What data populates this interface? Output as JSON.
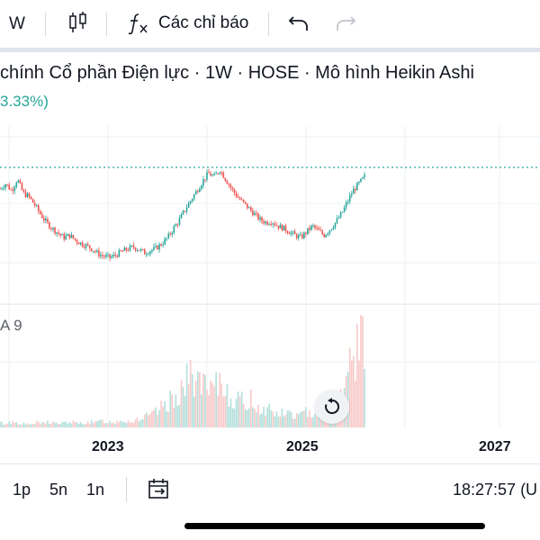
{
  "toolbar": {
    "interval": "W",
    "indicators_label": "Các chỉ báo",
    "chart_type_icon": "candles-icon",
    "indicators_icon": "function-icon",
    "undo_icon": "undo-icon",
    "redo_icon": "redo-icon"
  },
  "chart": {
    "title": "chính Cổ phần Điện lực · 1W · HOSE · Mô hình Heikin Ashi",
    "change": "3.33%)",
    "volume_label": "A 9"
  },
  "colors": {
    "up": "#26a69a",
    "down": "#ef5350",
    "up_volume": "#b2dfdb",
    "down_volume": "#f8c9c8",
    "price_line": "#26a69a"
  },
  "chart_data": {
    "type": "candlestick",
    "x_ticks": [
      "2023",
      "2025",
      "2027"
    ],
    "grid": true,
    "price_series_trend": [
      0.62,
      0.66,
      0.6,
      0.7,
      0.58,
      0.55,
      0.48,
      0.4,
      0.33,
      0.28,
      0.24,
      0.2,
      0.22,
      0.18,
      0.15,
      0.13,
      0.1,
      0.06,
      0.04,
      0.03,
      0.05,
      0.08,
      0.1,
      0.12,
      0.1,
      0.07,
      0.09,
      0.11,
      0.15,
      0.2,
      0.28,
      0.35,
      0.44,
      0.52,
      0.6,
      0.68,
      0.75,
      0.72,
      0.78,
      0.7,
      0.62,
      0.55,
      0.5,
      0.45,
      0.4,
      0.35,
      0.33,
      0.34,
      0.3,
      0.28,
      0.25,
      0.22,
      0.2,
      0.25,
      0.3,
      0.26,
      0.22,
      0.27,
      0.33,
      0.4,
      0.5,
      0.6,
      0.66,
      0.72
    ],
    "volume_trend": [
      0.05,
      0.04,
      0.06,
      0.05,
      0.04,
      0.03,
      0.05,
      0.04,
      0.06,
      0.05,
      0.04,
      0.05,
      0.06,
      0.04,
      0.05,
      0.06,
      0.05,
      0.07,
      0.06,
      0.05,
      0.08,
      0.07,
      0.06,
      0.09,
      0.1,
      0.12,
      0.15,
      0.2,
      0.25,
      0.3,
      0.38,
      0.45,
      0.55,
      0.5,
      0.42,
      0.35,
      0.4,
      0.48,
      0.38,
      0.3,
      0.28,
      0.25,
      0.3,
      0.22,
      0.18,
      0.2,
      0.15,
      0.14,
      0.16,
      0.13,
      0.12,
      0.15,
      0.18,
      0.14,
      0.2,
      0.25,
      0.3,
      0.35,
      0.5,
      0.7,
      0.9,
      1.0
    ]
  },
  "bottom_bar": {
    "ranges": [
      "1p",
      "5n",
      "1n"
    ],
    "time": "18:27:57 (U",
    "goto_icon": "goto-date-icon"
  }
}
